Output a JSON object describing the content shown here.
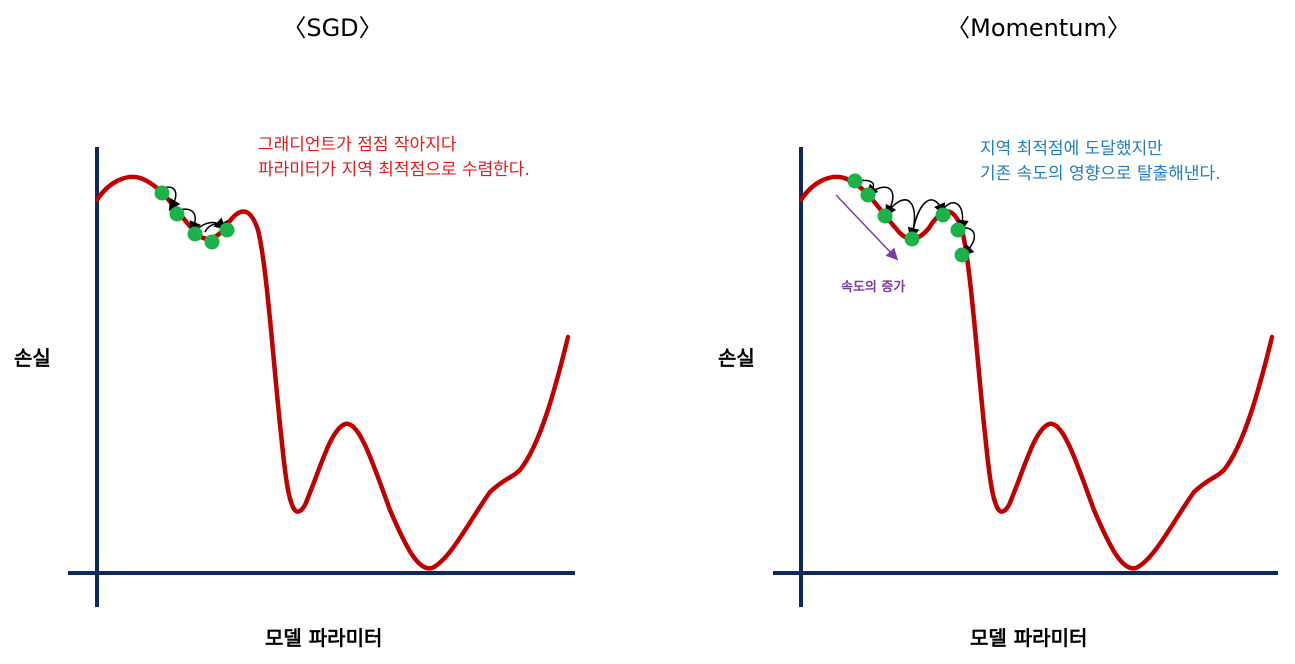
{
  "panels": [
    {
      "title": "〈SGD〉",
      "y_label": "손실",
      "x_label": "모델 파라미터",
      "annotation_lines": [
        "그래디언트가 점점 작아지다",
        "파라미터가 지역 최적점으로 수렴한다."
      ],
      "annotation_color": "#e31b1b"
    },
    {
      "title": "〈Momentum〉",
      "y_label": "손실",
      "x_label": "모델 파라미터",
      "annotation_lines": [
        "지역 최적점에 도달했지만",
        "기존 속도의 영향으로 탈출해낸다."
      ],
      "annotation_color": "#1f7dc4",
      "velocity_label": "속도의 증가",
      "velocity_color": "#7b3aa8"
    }
  ],
  "colors": {
    "curve": "#c00000",
    "axis": "#0d2a5c",
    "point": "#19b34a",
    "arrow": "#000000"
  }
}
